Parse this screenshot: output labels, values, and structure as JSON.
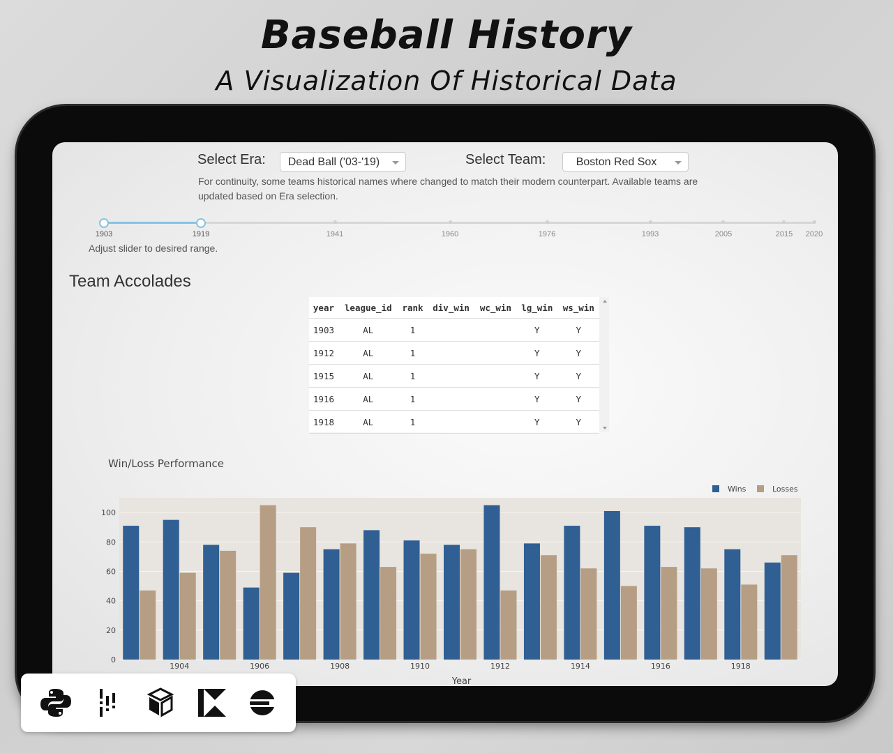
{
  "header": {
    "title": "Baseball History",
    "subtitle": "A Visualization Of Historical Data"
  },
  "controls": {
    "era_label": "Select Era:",
    "era_value": "Dead Ball ('03-'19)",
    "team_label": "Select Team:",
    "team_value": "Boston Red Sox",
    "note": "For continuity, some teams historical names where changed to match their modern counterpart. Available teams are updated based on Era selection."
  },
  "slider": {
    "marks": [
      "1903",
      "1919",
      "1941",
      "1960",
      "1976",
      "1993",
      "2005",
      "2015",
      "2020"
    ],
    "range": [
      "1903",
      "1919"
    ],
    "hint": "Adjust slider to desired range."
  },
  "accolades": {
    "title": "Team Accolades",
    "columns": [
      "year",
      "league_id",
      "rank",
      "div_win",
      "wc_win",
      "lg_win",
      "ws_win"
    ],
    "rows": [
      [
        "1903",
        "AL",
        "1",
        "",
        "",
        "Y",
        "Y"
      ],
      [
        "1912",
        "AL",
        "1",
        "",
        "",
        "Y",
        "Y"
      ],
      [
        "1915",
        "AL",
        "1",
        "",
        "",
        "Y",
        "Y"
      ],
      [
        "1916",
        "AL",
        "1",
        "",
        "",
        "Y",
        "Y"
      ],
      [
        "1918",
        "AL",
        "1",
        "",
        "",
        "Y",
        "Y"
      ]
    ]
  },
  "chart_title": "Win/Loss Performance",
  "chart_data": {
    "type": "bar",
    "title": "Win/Loss Performance",
    "xlabel": "Year",
    "ylabel": "",
    "x": [
      1903,
      1904,
      1905,
      1906,
      1907,
      1908,
      1909,
      1910,
      1911,
      1912,
      1913,
      1914,
      1915,
      1916,
      1917,
      1918,
      1919
    ],
    "x_tick_labels": [
      "1904",
      "1906",
      "1908",
      "1910",
      "1912",
      "1914",
      "1916",
      "1918"
    ],
    "y_ticks": [
      "0",
      "20",
      "40",
      "60",
      "80",
      "100"
    ],
    "ylim": [
      0,
      110
    ],
    "series": [
      {
        "name": "Wins",
        "color": "#2f5f93",
        "values": [
          91,
          95,
          78,
          49,
          59,
          75,
          88,
          81,
          78,
          105,
          79,
          91,
          101,
          91,
          90,
          75,
          66
        ]
      },
      {
        "name": "Losses",
        "color": "#b59e84",
        "values": [
          47,
          59,
          74,
          105,
          90,
          79,
          63,
          72,
          75,
          47,
          71,
          62,
          50,
          63,
          62,
          51,
          71
        ]
      }
    ],
    "legend": "top-right",
    "grid": true
  },
  "logos": [
    "python-icon",
    "pandas-icon",
    "numpy-icon",
    "kotlin-icon",
    "elastic-icon"
  ]
}
